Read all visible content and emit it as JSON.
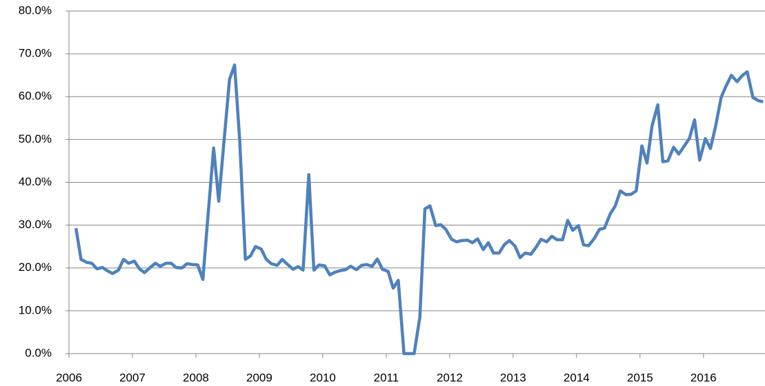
{
  "chart_data": {
    "type": "line",
    "color": "#4f81bd",
    "grid": true,
    "xlim": [
      2006,
      2016.97
    ],
    "xticks": [
      2006,
      2007,
      2008,
      2009,
      2010,
      2011,
      2012,
      2013,
      2014,
      2015,
      2016
    ],
    "ylim": [
      0,
      80
    ],
    "yticks": [
      {
        "value": 0,
        "label": "0.0%"
      },
      {
        "value": 10,
        "label": "10.0%"
      },
      {
        "value": 20,
        "label": "20.0%"
      },
      {
        "value": 30,
        "label": "30.0%"
      },
      {
        "value": 40,
        "label": "40.0%"
      },
      {
        "value": 50,
        "label": "50.0%"
      },
      {
        "value": 60,
        "label": "60.0%"
      },
      {
        "value": 70,
        "label": "70.0%"
      },
      {
        "value": 80,
        "label": "80.0%"
      }
    ],
    "x": [
      2006.11,
      2006.19,
      2006.28,
      2006.36,
      2006.44,
      2006.53,
      2006.61,
      2006.69,
      2006.78,
      2006.86,
      2006.94,
      2007.03,
      2007.11,
      2007.19,
      2007.28,
      2007.36,
      2007.44,
      2007.53,
      2007.61,
      2007.69,
      2007.78,
      2007.86,
      2007.94,
      2008.03,
      2008.11,
      2008.19,
      2008.28,
      2008.36,
      2008.44,
      2008.53,
      2008.61,
      2008.69,
      2008.78,
      2008.86,
      2008.94,
      2009.03,
      2009.11,
      2009.19,
      2009.28,
      2009.36,
      2009.44,
      2009.53,
      2009.61,
      2009.69,
      2009.78,
      2009.86,
      2009.94,
      2010.03,
      2010.11,
      2010.19,
      2010.28,
      2010.36,
      2010.44,
      2010.53,
      2010.61,
      2010.69,
      2010.78,
      2010.86,
      2010.94,
      2011.03,
      2011.11,
      2011.19,
      2011.28,
      2011.36,
      2011.44,
      2011.53,
      2011.61,
      2011.69,
      2011.78,
      2011.86,
      2011.94,
      2012.03,
      2012.11,
      2012.19,
      2012.28,
      2012.36,
      2012.44,
      2012.53,
      2012.61,
      2012.69,
      2012.78,
      2012.86,
      2012.94,
      2013.03,
      2013.11,
      2013.19,
      2013.28,
      2013.36,
      2013.44,
      2013.53,
      2013.61,
      2013.69,
      2013.78,
      2013.86,
      2013.94,
      2014.03,
      2014.11,
      2014.19,
      2014.28,
      2014.36,
      2014.44,
      2014.53,
      2014.61,
      2014.69,
      2014.78,
      2014.86,
      2014.94,
      2015.03,
      2015.11,
      2015.19,
      2015.28,
      2015.36,
      2015.44,
      2015.53,
      2015.61,
      2015.69,
      2015.78,
      2015.86,
      2015.94,
      2016.03,
      2016.11,
      2016.19,
      2016.28,
      2016.36,
      2016.44,
      2016.53,
      2016.61,
      2016.69,
      2016.78,
      2016.86,
      2016.94
    ],
    "values": [
      29.3,
      22,
      21.3,
      21.1,
      19.8,
      20.1,
      19.3,
      18.7,
      19.5,
      22,
      21.1,
      21.6,
      19.8,
      18.9,
      20.1,
      21.1,
      20.4,
      21.1,
      21.1,
      20.1,
      20,
      21,
      20.8,
      20.7,
      17.3,
      32,
      48,
      35.6,
      49,
      64,
      67.4,
      50,
      22,
      22.8,
      25,
      24.4,
      22,
      21,
      20.6,
      22,
      20.9,
      19.7,
      20.3,
      19.5,
      41.8,
      19.5,
      20.7,
      20.5,
      18.4,
      19,
      19.4,
      19.6,
      20.4,
      19.6,
      20.6,
      20.8,
      20.4,
      22.1,
      19.7,
      19.2,
      15.3,
      17.1,
      0,
      0,
      0,
      8.5,
      33.8,
      34.5,
      29.9,
      30.1,
      29,
      26.7,
      26.1,
      26.4,
      26.5,
      25.9,
      26.8,
      24.3,
      25.9,
      23.5,
      23.5,
      25.4,
      26.4,
      25.1,
      22.4,
      23.5,
      23.2,
      24.8,
      26.7,
      26.1,
      27.4,
      26.6,
      26.6,
      31.1,
      28.8,
      29.9,
      25.4,
      25.2,
      26.9,
      29,
      29.3,
      32.6,
      34.5,
      38,
      37.1,
      37.2,
      38,
      48.5,
      44.5,
      53.2,
      58.1,
      44.8,
      45,
      48.2,
      46.6,
      48.3,
      50.3,
      54.6,
      45.2,
      50.2,
      47.9,
      53,
      59.9,
      62.6,
      65,
      63.5,
      64.9,
      65.8,
      59.8,
      59.1,
      58.8
    ]
  }
}
